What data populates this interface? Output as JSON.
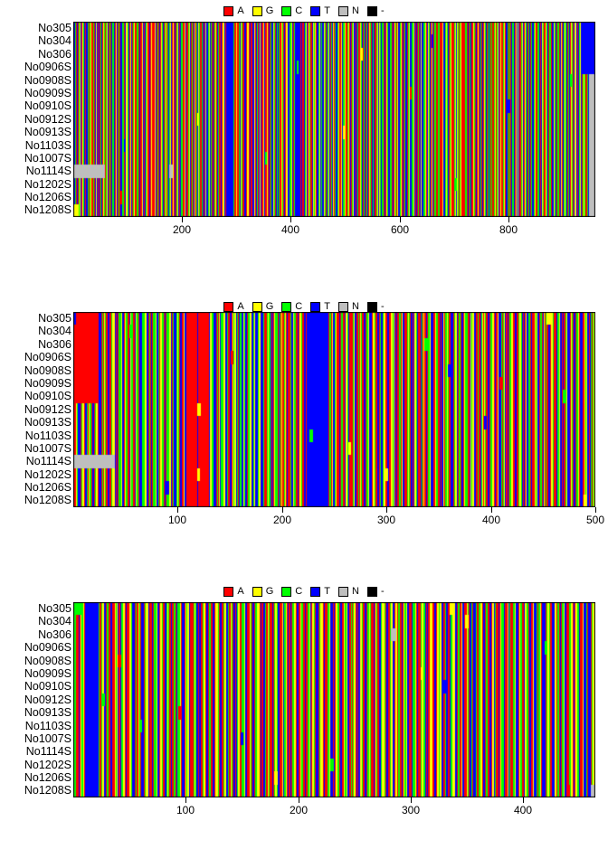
{
  "figure": {
    "background": "#ffffff",
    "panel_count": 3
  },
  "chart_data": [
    {
      "type": "heatmap",
      "subtype": "sequence-alignment",
      "legend": [
        {
          "label": "A",
          "color": "#FF0000"
        },
        {
          "label": "G",
          "color": "#FFFF00"
        },
        {
          "label": "C",
          "color": "#00FF00"
        },
        {
          "label": "T",
          "color": "#0000FF"
        },
        {
          "label": "N",
          "color": "#BEBEBE"
        },
        {
          "label": "-",
          "color": "#000000"
        }
      ],
      "rows": [
        "No305",
        "No304",
        "No306",
        "No0906S",
        "No0908S",
        "No0909S",
        "No0910S",
        "No0912S",
        "No0913S",
        "No1103S",
        "No1007S",
        "No1114S",
        "No1202S",
        "No1206S",
        "No1208S"
      ],
      "xticks": [
        200,
        400,
        600,
        800
      ],
      "xlim": [
        1,
        960
      ],
      "base_sequence_lines": [
        "TAATCGATTACCAGTTAAGCATCATTTTCAACGGATACCATTAGTCAATAGCCTAAGTCA",
        "ACCGTTAGCAATGCCATAAGTTCACGATTTACGCAATTGGACATACGTTAACCGATATCC",
        "GATTACACGTTAATCCGGAATTCAGCATAACGTTAGCCATAATGCTTAACGGTACATACG",
        "TTCAGCAATACCGGTAATTCGCATAAGTTACACGGATATCCATTGAACGTAGCAATACCT",
        "AATGGCTTACAGTACCATTAGCGTAATCCAGATTACGGTTCATTTTTTTTTTTTTACAGA",
        "CGATAACTTGCCATAGTTAACGGCATTACAGTTCGAATACCATGGCTAAACGTTACAGCA",
        "ATACCGTTAGGCAATACTTCGAATGCCATTAAGCGTATACCAGTTAACGTTTTTTTTTAA",
        "TCAGATACCGTTAAGCCATATTGACGCAATTACGGTACATTAGCCAATGCGTTAACATCG",
        "AGCATTACCGATAAGTTCACGTATACCGGATTAACGCTATAGTCCATAAGCGTTACATGA",
        "CATTAGGCAATCCGTATAACGTTAGCATACCGATTAAGCGTATCACGATTACGCTAAGTC",
        "TACGCAATAGCCTTAAGCGATATCACGGTTAATACCGATAGCTTACACGTAATGCCATAG",
        "GTTAACGCATATCCGATAAGGCTTACAGCATTACGGTAATACCGTTAGCAATCGCATAAC",
        "ATCCGATTAGCGTAAACGCTATTACGGATACCATTAGGCATAACGTTCAGCATATCGAAC",
        "CGTTAAGCATACCGGATATTCAGCAATACGCTTAAGTCGATATACCGATTAGCCATAACG",
        "TAGCATTACGGATAACCGTTATAGCCATAAGCGTTACACGATATGGCATTACGCAATAGC",
        "ATTCGGCATAACGTTAGACCATAGCGTTAATCCGATAACGGCTATACCTTTTTTTTTTTT"
      ],
      "variants": [
        {
          "r": 11,
          "s": 1,
          "e": 58,
          "b": "N"
        },
        {
          "r": 11,
          "s": 178,
          "e": 183,
          "b": "N"
        },
        {
          "r": 0,
          "s": 1,
          "e": 2,
          "b": "T"
        },
        {
          "r": 14,
          "s": 1,
          "e": 9,
          "b": "G"
        },
        {
          "r": 0,
          "s": 935,
          "e": 960,
          "b": "T"
        },
        {
          "r": 1,
          "s": 935,
          "e": 960,
          "b": "T"
        },
        {
          "r": 2,
          "s": 935,
          "e": 960,
          "b": "T"
        },
        {
          "r": 3,
          "s": 935,
          "e": 960,
          "b": "T"
        },
        {
          "r": 4,
          "s": 950,
          "e": 960,
          "b": "N"
        },
        {
          "r": 5,
          "s": 950,
          "e": 960,
          "b": "N"
        },
        {
          "r": 6,
          "s": 950,
          "e": 960,
          "b": "N"
        },
        {
          "r": 7,
          "s": 950,
          "e": 960,
          "b": "N"
        },
        {
          "r": 8,
          "s": 950,
          "e": 960,
          "b": "N"
        },
        {
          "r": 9,
          "s": 950,
          "e": 960,
          "b": "N"
        },
        {
          "r": 10,
          "s": 950,
          "e": 960,
          "b": "N"
        },
        {
          "r": 11,
          "s": 950,
          "e": 960,
          "b": "N"
        },
        {
          "r": 12,
          "s": 950,
          "e": 960,
          "b": "N"
        },
        {
          "r": 13,
          "s": 950,
          "e": 960,
          "b": "N"
        },
        {
          "r": 14,
          "s": 950,
          "e": 960,
          "b": "N"
        },
        {
          "r": 3,
          "s": 412,
          "e": 413,
          "b": "C"
        },
        {
          "r": 7,
          "s": 230,
          "e": 231,
          "b": "G"
        },
        {
          "r": 9,
          "s": 95,
          "e": 96,
          "b": "T"
        },
        {
          "r": 5,
          "s": 620,
          "e": 622,
          "b": "A"
        },
        {
          "r": 12,
          "s": 704,
          "e": 705,
          "b": "C"
        },
        {
          "r": 2,
          "s": 530,
          "e": 531,
          "b": "G"
        },
        {
          "r": 6,
          "s": 801,
          "e": 802,
          "b": "T"
        },
        {
          "r": 10,
          "s": 355,
          "e": 356,
          "b": "C"
        },
        {
          "r": 13,
          "s": 88,
          "e": 89,
          "b": "A"
        },
        {
          "r": 4,
          "s": 915,
          "e": 916,
          "b": "C"
        },
        {
          "r": 8,
          "s": 498,
          "e": 499,
          "b": "G"
        },
        {
          "r": 1,
          "s": 660,
          "e": 661,
          "b": "T"
        }
      ]
    },
    {
      "type": "heatmap",
      "subtype": "sequence-alignment",
      "legend": [
        {
          "label": "A",
          "color": "#FF0000"
        },
        {
          "label": "G",
          "color": "#FFFF00"
        },
        {
          "label": "C",
          "color": "#00FF00"
        },
        {
          "label": "T",
          "color": "#0000FF"
        },
        {
          "label": "N",
          "color": "#BEBEBE"
        },
        {
          "label": "-",
          "color": "#000000"
        }
      ],
      "rows": [
        "No305",
        "No304",
        "No306",
        "No0906S",
        "No0908S",
        "No0909S",
        "No0910S",
        "No0912S",
        "No0913S",
        "No1103S",
        "No1007S",
        "No1114S",
        "No1202S",
        "No1206S",
        "No1208S"
      ],
      "xticks": [
        100,
        200,
        300,
        400,
        500
      ],
      "xlim": [
        1,
        500
      ],
      "base_sequence_lines": [
        "TAAGCTTACGGATCAGCCATACGGATTACAGCATTAACGGTATACCGTTAGCAATGCCAT",
        "GCCATTCCCGGTACATACCGTTCAGCCATACCGGTACTTCGCATAAGTTAAAAAAAAAAT",
        "AAAAAAAAAATGGCCTTACAGTCCGGTTCATTAGCGTCATCCTGCTTACGGTTCGTTCGG",
        "TTCAAACGCTATAGCCATCAGACGATAACTTGCCATAGGCATTATTTTTTTTTTTTTTTT",
        "TTTTTACAGTTCGAATACCATGGCTAAACGTTACAGCAATACCGTTAGGCAATACTTCGA",
        "ATTAAGCGTATACCAGTTAACGCATATGGCTAATCAGATACCGTTAAGCCATATTGACGC",
        "AATTACGGTACATTAGCCAATGCGTTAACATCGAGCATTACCGATAAGTTCACGTATACC",
        "GGATTAACGCTATAGTCCATAAGCGTTACATGACATTAGGCAATCCGTATAACGTTAGCA",
        "TACCGATTAAGCGTATCACG"
      ],
      "variants": [
        {
          "r": 11,
          "s": 1,
          "e": 39,
          "b": "N"
        },
        {
          "r": 0,
          "s": 1,
          "e": 3,
          "b": "T"
        },
        {
          "r": 0,
          "s": 4,
          "e": 24,
          "b": "A"
        },
        {
          "r": 1,
          "s": 4,
          "e": 24,
          "b": "A"
        },
        {
          "r": 2,
          "s": 4,
          "e": 24,
          "b": "A"
        },
        {
          "r": 3,
          "s": 4,
          "e": 24,
          "b": "A"
        },
        {
          "r": 4,
          "s": 4,
          "e": 24,
          "b": "A"
        },
        {
          "r": 5,
          "s": 4,
          "e": 24,
          "b": "A"
        },
        {
          "r": 6,
          "s": 4,
          "e": 24,
          "b": "A"
        },
        {
          "r": 0,
          "s": 455,
          "e": 457,
          "b": "G"
        },
        {
          "r": 4,
          "s": 360,
          "e": 361,
          "b": "T"
        },
        {
          "r": 7,
          "s": 120,
          "e": 122,
          "b": "G"
        },
        {
          "r": 9,
          "s": 228,
          "e": 229,
          "b": "C"
        },
        {
          "r": 2,
          "s": 338,
          "e": 339,
          "b": "C"
        },
        {
          "r": 13,
          "s": 90,
          "e": 91,
          "b": "T"
        },
        {
          "r": 5,
          "s": 410,
          "e": 411,
          "b": "A"
        },
        {
          "r": 1,
          "s": 55,
          "e": 56,
          "b": "C"
        },
        {
          "r": 12,
          "s": 300,
          "e": 301,
          "b": "G"
        },
        {
          "r": 6,
          "s": 470,
          "e": 471,
          "b": "C"
        },
        {
          "r": 3,
          "s": 152,
          "e": 153,
          "b": "A"
        },
        {
          "r": 10,
          "s": 265,
          "e": 266,
          "b": "G"
        },
        {
          "r": 8,
          "s": 395,
          "e": 396,
          "b": "T"
        },
        {
          "r": 12,
          "s": 120,
          "e": 121,
          "b": "G"
        },
        {
          "r": 14,
          "s": 490,
          "e": 492,
          "b": "G"
        }
      ]
    },
    {
      "type": "heatmap",
      "subtype": "sequence-alignment",
      "legend": [
        {
          "label": "A",
          "color": "#FF0000"
        },
        {
          "label": "G",
          "color": "#FFFF00"
        },
        {
          "label": "C",
          "color": "#00FF00"
        },
        {
          "label": "T",
          "color": "#0000FF"
        },
        {
          "label": "N",
          "color": "#BEBEBE"
        },
        {
          "label": "-",
          "color": "#000000"
        }
      ],
      "rows": [
        "No305",
        "No304",
        "No306",
        "No0906S",
        "No0908S",
        "No0909S",
        "No0910S",
        "No0912S",
        "No0913S",
        "No1103S",
        "No1007S",
        "No1114S",
        "No1202S",
        "No1206S",
        "No1208S"
      ],
      "xticks": [
        100,
        200,
        300,
        400
      ],
      "xlim": [
        1,
        464
      ],
      "base_sequence_lines": [
        "ACCAATAGCGATTTTTTTTTTTTCACGGTACCATTAAGCGTATCCGATAAGGCTTACAGC",
        "ATTACGGTAATACCGTTAGCAATCGCATAACATCCGATTAGCGTAAACGCTATTACGGAT",
        "ACCATTAGGCATAACGTTCAGCATATCGAACCGTTAAGCATACCGGATATTCAGCAATAC",
        "GCTTAAGTCGATATACCGATTAGCCATAACGTAGCATTACGGATAACCGTTATAGCCATA",
        "AGCGTTACACGATATGGCATTACGCAATAGCATTCGGCATAACGTTAGACCATAGCGTTA",
        "ATCCGATAACGGCTATAGGGATTAGCGGTAACTAATCGGGTACCAGTTAAGCATCATTCA",
        "ACGGATACCATTAGTCAATAGCCTAAGTCAACCGTTAGCAATGCCATAAGTTCACGATTT",
        "ACGCAATTGGACATACGTTAACCGATAGCCTAAGTTCATTACGG"
      ],
      "variants": [
        {
          "r": 2,
          "s": 284,
          "e": 287,
          "b": "N"
        },
        {
          "r": 14,
          "s": 461,
          "e": 464,
          "b": "N"
        },
        {
          "r": 0,
          "s": 3,
          "e": 8,
          "b": "C"
        },
        {
          "r": 7,
          "s": 27,
          "e": 28,
          "b": "C"
        },
        {
          "r": 4,
          "s": 41,
          "e": 42,
          "b": "A"
        },
        {
          "r": 0,
          "s": 336,
          "e": 337,
          "b": "G"
        },
        {
          "r": 1,
          "s": 350,
          "e": 351,
          "b": "G"
        },
        {
          "r": 10,
          "s": 150,
          "e": 151,
          "b": "T"
        },
        {
          "r": 12,
          "s": 230,
          "e": 231,
          "b": "C"
        },
        {
          "r": 5,
          "s": 310,
          "e": 311,
          "b": "G"
        },
        {
          "r": 8,
          "s": 95,
          "e": 96,
          "b": "A"
        },
        {
          "r": 3,
          "s": 420,
          "e": 421,
          "b": "C"
        },
        {
          "r": 13,
          "s": 180,
          "e": 181,
          "b": "G"
        },
        {
          "r": 6,
          "s": 330,
          "e": 331,
          "b": "T"
        },
        {
          "r": 9,
          "s": 60,
          "e": 61,
          "b": "C"
        },
        {
          "r": 14,
          "s": 440,
          "e": 441,
          "b": "A"
        }
      ]
    }
  ]
}
